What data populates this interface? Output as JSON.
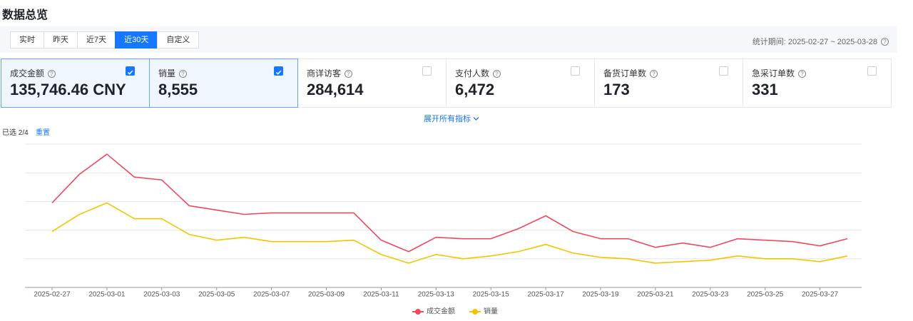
{
  "header": {
    "title": "数据总览"
  },
  "tabs": {
    "items": [
      "实时",
      "昨天",
      "近7天",
      "近30天",
      "自定义"
    ],
    "active": 3
  },
  "period": "统计期间: 2025-02-27 ~ 2025-03-28",
  "metrics": [
    {
      "label": "成交金额",
      "value": "135,746.46 CNY",
      "checked": true
    },
    {
      "label": "销量",
      "value": "8,555",
      "checked": true
    },
    {
      "label": "商详访客",
      "value": "284,614",
      "checked": false
    },
    {
      "label": "支付人数",
      "value": "6,472",
      "checked": false
    },
    {
      "label": "备货订单数",
      "value": "173",
      "checked": false
    },
    {
      "label": "急采订单数",
      "value": "331",
      "checked": false
    }
  ],
  "expand": "展开所有指标",
  "selection": {
    "count": "已选 2/4",
    "reset": "重置"
  },
  "chart_data": {
    "type": "line",
    "categories": [
      "2025-02-27",
      null,
      "2025-03-01",
      null,
      "2025-03-03",
      null,
      "2025-03-05",
      null,
      "2025-03-07",
      null,
      "2025-03-09",
      null,
      "2025-03-11",
      null,
      "2025-03-13",
      null,
      "2025-03-15",
      null,
      "2025-03-17",
      null,
      "2025-03-19",
      null,
      "2025-03-21",
      null,
      "2025-03-23",
      null,
      "2025-03-25",
      null,
      "2025-03-27",
      null
    ],
    "series": [
      {
        "name": "成交金额",
        "color": "#f0485e",
        "values": [
          2.95,
          3.95,
          4.65,
          3.85,
          3.75,
          2.85,
          2.7,
          2.55,
          2.6,
          2.6,
          2.6,
          2.6,
          1.65,
          1.25,
          1.75,
          1.7,
          1.7,
          2.05,
          2.5,
          1.95,
          1.7,
          1.7,
          1.4,
          1.55,
          1.4,
          1.7,
          1.65,
          1.6,
          1.45,
          1.7
        ]
      },
      {
        "name": "销量",
        "color": "#f5c400",
        "values": [
          1.95,
          2.55,
          2.95,
          2.4,
          2.4,
          1.85,
          1.65,
          1.75,
          1.6,
          1.6,
          1.6,
          1.65,
          1.15,
          0.85,
          1.15,
          1.0,
          1.1,
          1.25,
          1.5,
          1.2,
          1.05,
          1.0,
          0.85,
          0.9,
          0.95,
          1.1,
          1.0,
          1.0,
          0.9,
          1.1
        ]
      }
    ],
    "ylim": [
      0,
      5
    ],
    "grid": true
  }
}
